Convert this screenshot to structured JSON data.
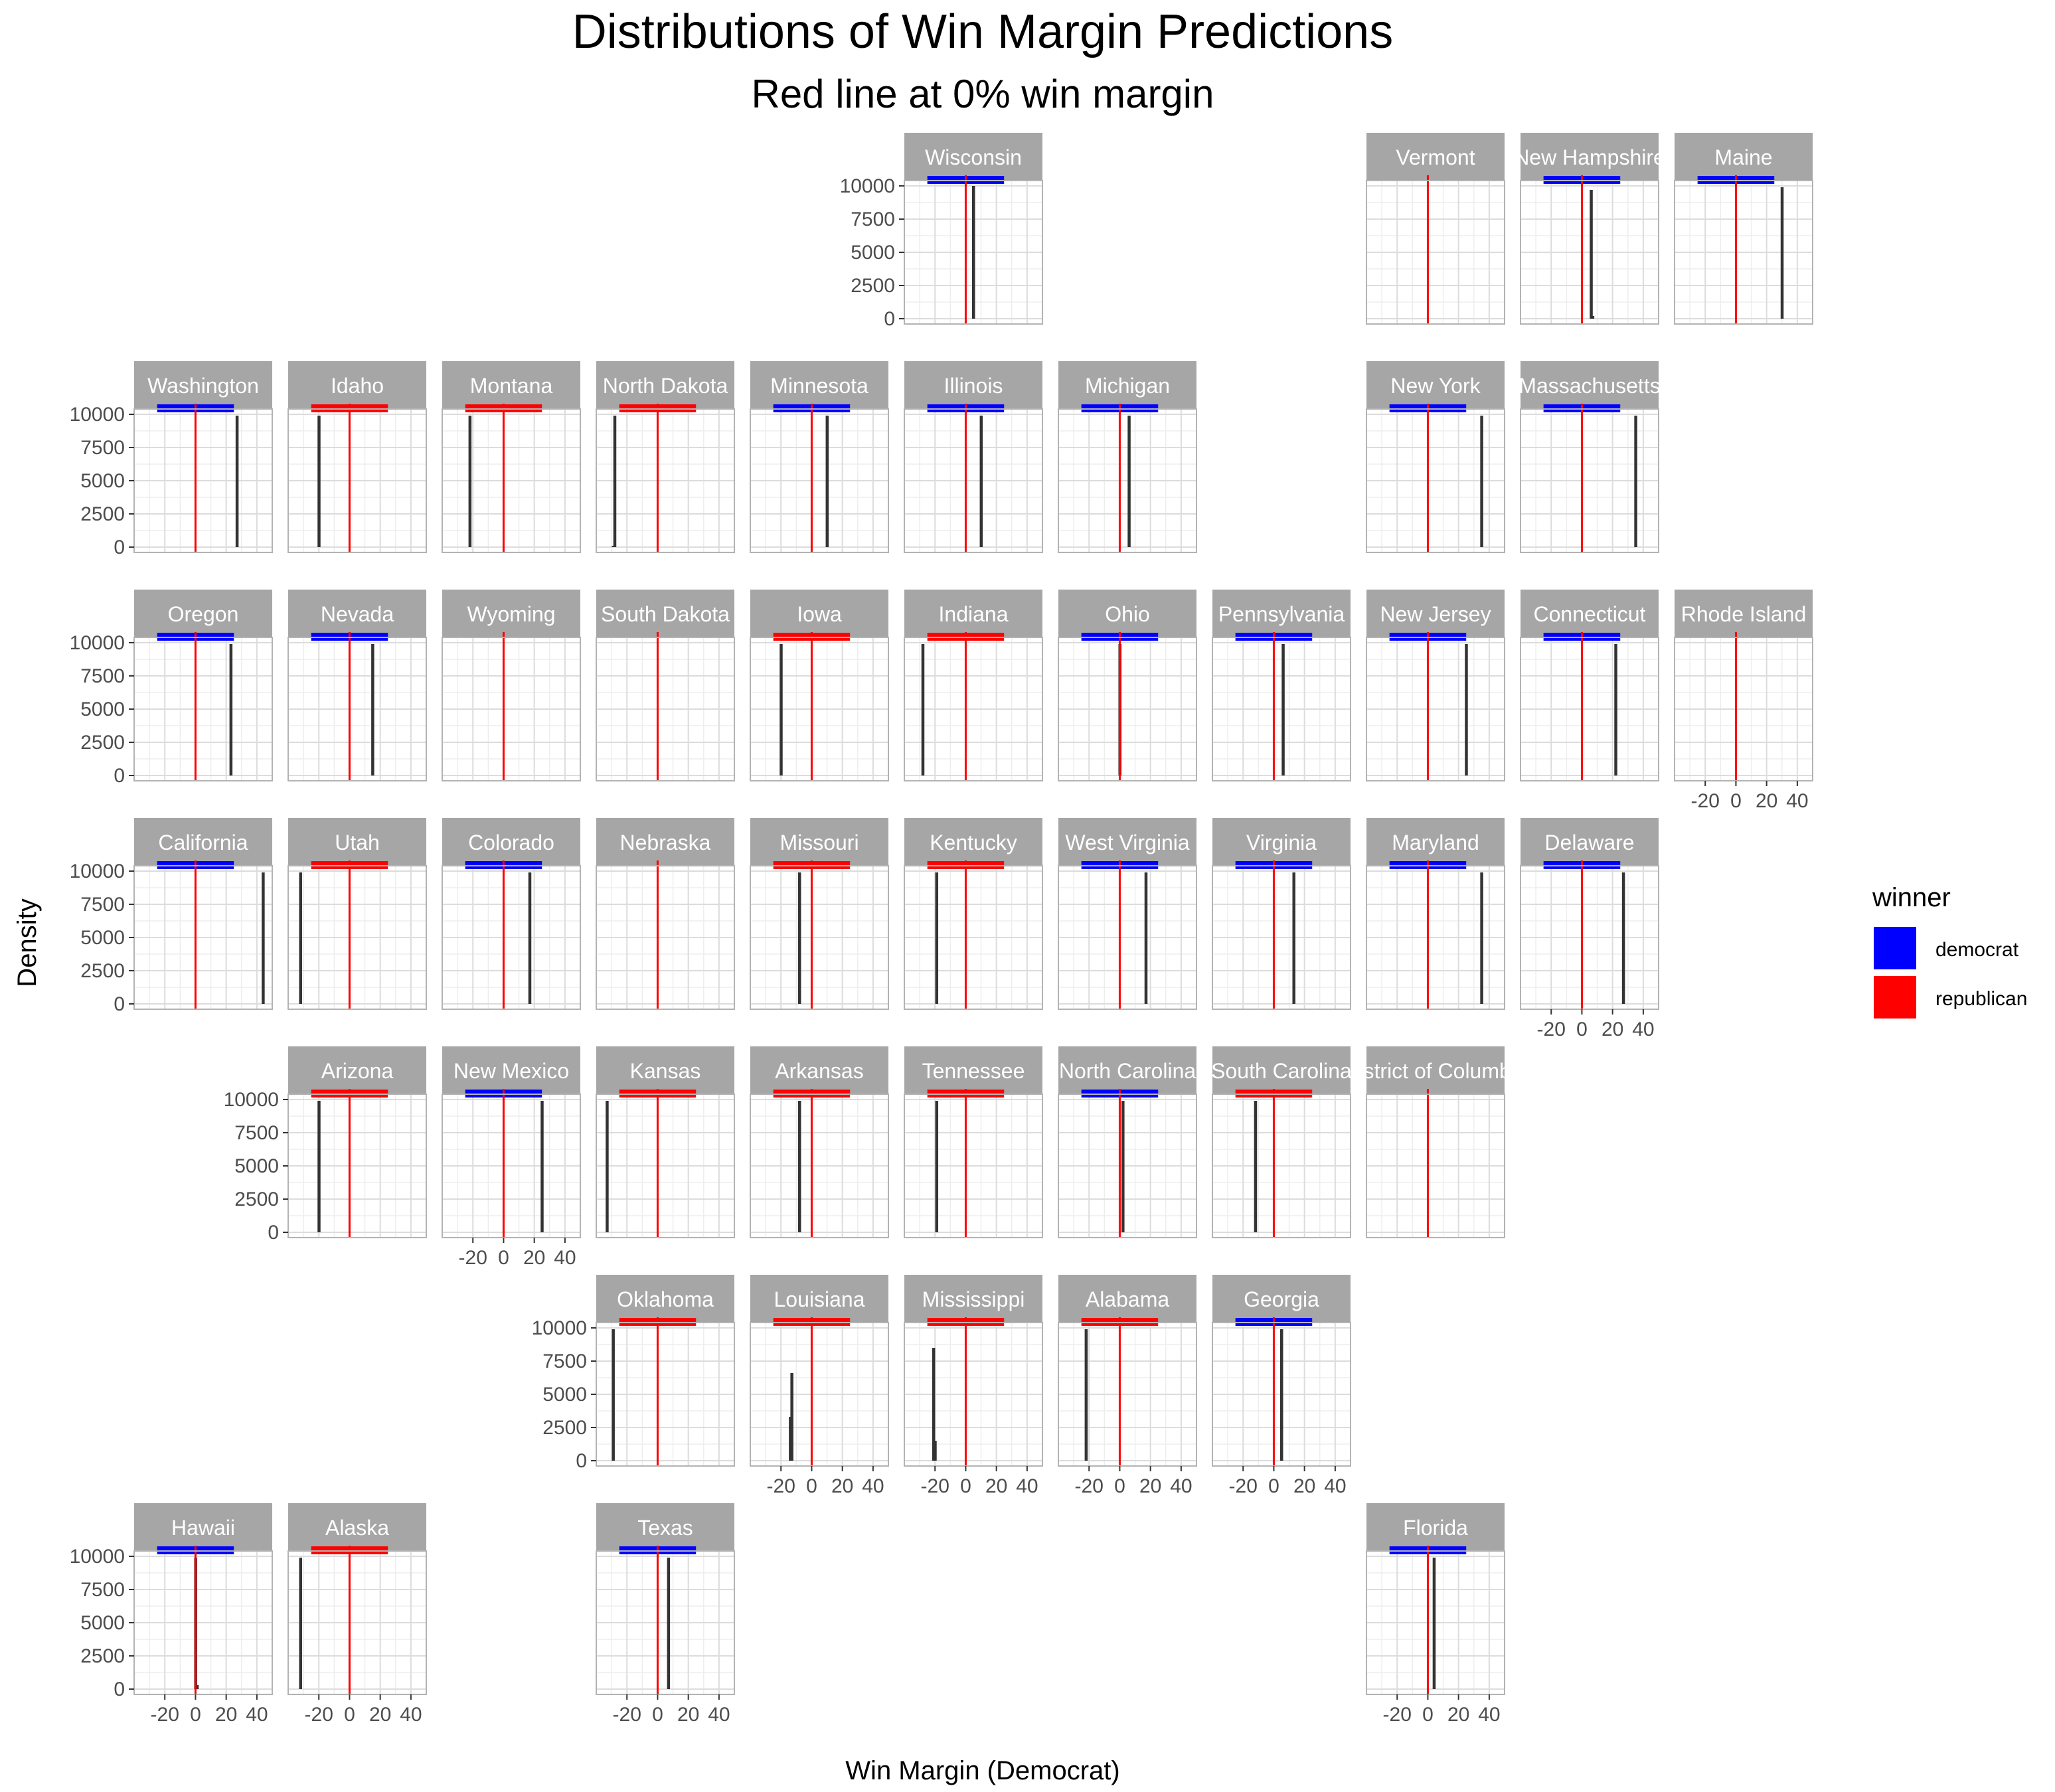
{
  "chart_data": {
    "type": "histogram-facet-grid",
    "title": "Distributions of Win Margin Predictions",
    "subtitle": "Red line at 0% win margin",
    "xlabel": "Win Margin (Democrat)",
    "ylabel": "Density",
    "xlim": [
      -40,
      50
    ],
    "ylim": [
      0,
      10000
    ],
    "x_ticks": [
      "-20",
      "0",
      "20",
      "40"
    ],
    "y_ticks": [
      "0",
      "2500",
      "5000",
      "7500",
      "10000"
    ],
    "reference_line_x": 0,
    "legend": {
      "title": "winner",
      "position": "right",
      "entries": [
        {
          "label": "democrat",
          "color": "#0000ff"
        },
        {
          "label": "republican",
          "color": "#ff0000"
        }
      ]
    },
    "colors": {
      "democrat": "#0000ff",
      "republican": "#ff0000",
      "reference": "#ff0000",
      "bar": "#333333",
      "strip": "#a6a6a6"
    },
    "facets": [
      {
        "state": "Wisconsin",
        "winner": "democrat",
        "bars": [
          {
            "x": 5,
            "y": 10000
          }
        ]
      },
      {
        "state": "Vermont",
        "winner": null,
        "bars": []
      },
      {
        "state": "New Hampshire",
        "winner": "democrat",
        "bars": [
          {
            "x": 6,
            "y": 9700
          },
          {
            "x": 7,
            "y": 200
          }
        ]
      },
      {
        "state": "Maine",
        "winner": "democrat",
        "bars": [
          {
            "x": 30,
            "y": 9900
          }
        ]
      },
      {
        "state": "Washington",
        "winner": "democrat",
        "bars": [
          {
            "x": 27,
            "y": 9900
          }
        ]
      },
      {
        "state": "Idaho",
        "winner": "republican",
        "bars": [
          {
            "x": -20,
            "y": 9900
          }
        ]
      },
      {
        "state": "Montana",
        "winner": "republican",
        "bars": [
          {
            "x": -22,
            "y": 9900
          }
        ]
      },
      {
        "state": "North Dakota",
        "winner": "republican",
        "bars": [
          {
            "x": -28,
            "y": 9900
          },
          {
            "x": -29,
            "y": 100
          }
        ]
      },
      {
        "state": "Minnesota",
        "winner": "democrat",
        "bars": [
          {
            "x": 10,
            "y": 9900
          }
        ]
      },
      {
        "state": "Illinois",
        "winner": "democrat",
        "bars": [
          {
            "x": 10,
            "y": 9900
          }
        ]
      },
      {
        "state": "Michigan",
        "winner": "democrat",
        "bars": [
          {
            "x": 6,
            "y": 9900
          }
        ]
      },
      {
        "state": "New York",
        "winner": "democrat",
        "bars": [
          {
            "x": 35,
            "y": 9900
          }
        ]
      },
      {
        "state": "Massachusetts",
        "winner": "democrat",
        "bars": [
          {
            "x": 35,
            "y": 9900
          }
        ]
      },
      {
        "state": "Oregon",
        "winner": "democrat",
        "bars": [
          {
            "x": 23,
            "y": 9900
          }
        ]
      },
      {
        "state": "Nevada",
        "winner": "democrat",
        "bars": [
          {
            "x": 15,
            "y": 9900
          }
        ]
      },
      {
        "state": "Wyoming",
        "winner": null,
        "bars": []
      },
      {
        "state": "South Dakota",
        "winner": null,
        "bars": []
      },
      {
        "state": "Iowa",
        "winner": "republican",
        "bars": [
          {
            "x": -20,
            "y": 9900
          }
        ]
      },
      {
        "state": "Indiana",
        "winner": "republican",
        "bars": [
          {
            "x": -28,
            "y": 9900
          }
        ]
      },
      {
        "state": "Ohio",
        "winner": "democrat",
        "bars": [
          {
            "x": 0,
            "y": 9900
          }
        ]
      },
      {
        "state": "Pennsylvania",
        "winner": "democrat",
        "bars": [
          {
            "x": 6,
            "y": 9900
          }
        ]
      },
      {
        "state": "New Jersey",
        "winner": "democrat",
        "bars": [
          {
            "x": 25,
            "y": 9900
          }
        ]
      },
      {
        "state": "Connecticut",
        "winner": "democrat",
        "bars": [
          {
            "x": 22,
            "y": 9900
          }
        ]
      },
      {
        "state": "Rhode Island",
        "winner": null,
        "bars": []
      },
      {
        "state": "California",
        "winner": "democrat",
        "bars": [
          {
            "x": 44,
            "y": 9900
          }
        ]
      },
      {
        "state": "Utah",
        "winner": "republican",
        "bars": [
          {
            "x": -32,
            "y": 9900
          }
        ]
      },
      {
        "state": "Colorado",
        "winner": "democrat",
        "bars": [
          {
            "x": 17,
            "y": 9900
          }
        ]
      },
      {
        "state": "Nebraska",
        "winner": null,
        "bars": []
      },
      {
        "state": "Missouri",
        "winner": "republican",
        "bars": [
          {
            "x": -8,
            "y": 9900
          }
        ]
      },
      {
        "state": "Kentucky",
        "winner": "republican",
        "bars": [
          {
            "x": -19,
            "y": 9900
          }
        ]
      },
      {
        "state": "West Virginia",
        "winner": "democrat",
        "bars": [
          {
            "x": 17,
            "y": 9900
          }
        ]
      },
      {
        "state": "Virginia",
        "winner": "democrat",
        "bars": [
          {
            "x": 13,
            "y": 9900
          }
        ]
      },
      {
        "state": "Maryland",
        "winner": "democrat",
        "bars": [
          {
            "x": 35,
            "y": 9900
          }
        ]
      },
      {
        "state": "Delaware",
        "winner": "democrat",
        "bars": [
          {
            "x": 27,
            "y": 9900
          }
        ]
      },
      {
        "state": "Arizona",
        "winner": "republican",
        "bars": [
          {
            "x": -20,
            "y": 9900
          }
        ]
      },
      {
        "state": "New Mexico",
        "winner": "democrat",
        "bars": [
          {
            "x": 25,
            "y": 9900
          }
        ]
      },
      {
        "state": "Kansas",
        "winner": "republican",
        "bars": [
          {
            "x": -33,
            "y": 9900
          }
        ]
      },
      {
        "state": "Arkansas",
        "winner": "republican",
        "bars": [
          {
            "x": -8,
            "y": 9900
          }
        ]
      },
      {
        "state": "Tennessee",
        "winner": "republican",
        "bars": [
          {
            "x": -19,
            "y": 9900
          }
        ]
      },
      {
        "state": "North Carolina",
        "winner": "democrat",
        "bars": [
          {
            "x": 2,
            "y": 9900
          }
        ]
      },
      {
        "state": "South Carolina",
        "winner": "republican",
        "bars": [
          {
            "x": -12,
            "y": 9900
          }
        ]
      },
      {
        "state": "District of Columbia",
        "winner": null,
        "bars": []
      },
      {
        "state": "Oklahoma",
        "winner": "republican",
        "bars": [
          {
            "x": -29,
            "y": 9900
          }
        ]
      },
      {
        "state": "Louisiana",
        "winner": "republican",
        "bars": [
          {
            "x": -14,
            "y": 3300
          },
          {
            "x": -13,
            "y": 6600
          }
        ]
      },
      {
        "state": "Mississippi",
        "winner": "republican",
        "bars": [
          {
            "x": -21,
            "y": 8500
          },
          {
            "x": -20,
            "y": 1500
          }
        ]
      },
      {
        "state": "Alabama",
        "winner": "republican",
        "bars": [
          {
            "x": -22,
            "y": 9900
          }
        ]
      },
      {
        "state": "Georgia",
        "winner": "democrat",
        "bars": [
          {
            "x": 5,
            "y": 9900
          }
        ]
      },
      {
        "state": "Hawaii",
        "winner": "democrat",
        "bars": [
          {
            "x": 0,
            "y": 9900
          },
          {
            "x": 1,
            "y": 300
          }
        ]
      },
      {
        "state": "Alaska",
        "winner": "republican",
        "bars": [
          {
            "x": -32,
            "y": 9900
          }
        ]
      },
      {
        "state": "Texas",
        "winner": "democrat",
        "bars": [
          {
            "x": 7,
            "y": 9900
          }
        ]
      },
      {
        "state": "Florida",
        "winner": "democrat",
        "bars": [
          {
            "x": 4,
            "y": 9900
          }
        ]
      }
    ]
  }
}
